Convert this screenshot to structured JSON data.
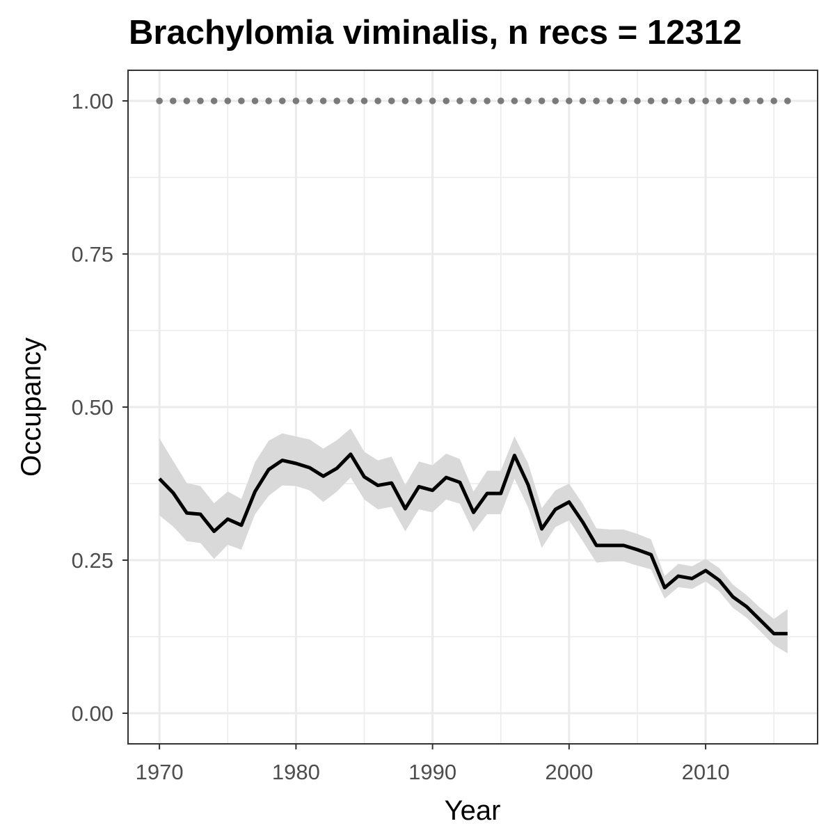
{
  "chart_data": {
    "type": "line",
    "title": "Brachylomia viminalis, n recs = 12312",
    "xlabel": "Year",
    "ylabel": "Occupancy",
    "xlim": [
      1967.7,
      2018.2
    ],
    "ylim": [
      -0.05,
      1.05
    ],
    "x_ticks": [
      1970,
      1980,
      1990,
      2000,
      2010
    ],
    "x_tick_labels": [
      "1970",
      "1980",
      "1990",
      "2000",
      "2010"
    ],
    "y_ticks": [
      0,
      0.25,
      0.5,
      0.75,
      1.0
    ],
    "y_tick_labels": [
      "0.00",
      "0.25",
      "0.50",
      "0.75",
      "1.00"
    ],
    "grid": true,
    "legend": "none",
    "colors": {
      "line": "#000000",
      "ribbon": "#d9d9d9",
      "reference_dots": "#7a7a7a",
      "grid": "#ebebeb",
      "panel_border": "#333333"
    },
    "series": [
      {
        "x": [
          1970,
          1971,
          1972,
          1973,
          1974,
          1975,
          1976,
          1977,
          1978,
          1979,
          1980,
          1981,
          1982,
          1983,
          1984,
          1985,
          1986,
          1987,
          1988,
          1989,
          1990,
          1991,
          1992,
          1993,
          1994,
          1995,
          1996,
          1997,
          1998,
          1999,
          2000,
          2001,
          2002,
          2003,
          2004,
          2005,
          2006,
          2007,
          2008,
          2009,
          2010,
          2011,
          2012,
          2013,
          2014,
          2015,
          2016
        ],
        "y": [
          0.383,
          0.36,
          0.327,
          0.325,
          0.297,
          0.317,
          0.307,
          0.362,
          0.398,
          0.413,
          0.408,
          0.401,
          0.387,
          0.4,
          0.423,
          0.386,
          0.372,
          0.376,
          0.334,
          0.37,
          0.364,
          0.385,
          0.377,
          0.328,
          0.359,
          0.359,
          0.421,
          0.373,
          0.301,
          0.333,
          0.345,
          0.312,
          0.274,
          0.274,
          0.274,
          0.267,
          0.259,
          0.205,
          0.224,
          0.22,
          0.233,
          0.217,
          0.19,
          0.174,
          0.152,
          0.13,
          0.13
        ],
        "lower": [
          0.323,
          0.305,
          0.281,
          0.278,
          0.252,
          0.275,
          0.267,
          0.325,
          0.355,
          0.372,
          0.371,
          0.364,
          0.345,
          0.362,
          0.385,
          0.349,
          0.333,
          0.337,
          0.297,
          0.333,
          0.328,
          0.349,
          0.342,
          0.296,
          0.325,
          0.325,
          0.383,
          0.336,
          0.27,
          0.304,
          0.315,
          0.281,
          0.246,
          0.248,
          0.248,
          0.241,
          0.235,
          0.187,
          0.206,
          0.203,
          0.215,
          0.199,
          0.172,
          0.156,
          0.134,
          0.111,
          0.098
        ],
        "upper": [
          0.449,
          0.412,
          0.376,
          0.371,
          0.343,
          0.362,
          0.35,
          0.41,
          0.445,
          0.457,
          0.452,
          0.447,
          0.432,
          0.446,
          0.465,
          0.427,
          0.413,
          0.419,
          0.373,
          0.411,
          0.405,
          0.424,
          0.415,
          0.362,
          0.396,
          0.396,
          0.452,
          0.408,
          0.335,
          0.364,
          0.375,
          0.342,
          0.302,
          0.3,
          0.3,
          0.293,
          0.284,
          0.224,
          0.244,
          0.24,
          0.252,
          0.237,
          0.21,
          0.193,
          0.172,
          0.154,
          0.17
        ]
      },
      {
        "x": [
          1970,
          1971,
          1972,
          1973,
          1974,
          1975,
          1976,
          1977,
          1978,
          1979,
          1980,
          1981,
          1982,
          1983,
          1984,
          1985,
          1986,
          1987,
          1988,
          1989,
          1990,
          1991,
          1992,
          1993,
          1994,
          1995,
          1996,
          1997,
          1998,
          1999,
          2000,
          2001,
          2002,
          2003,
          2004,
          2005,
          2006,
          2007,
          2008,
          2009,
          2010,
          2011,
          2012,
          2013,
          2014,
          2015,
          2016
        ],
        "y": [
          1,
          1,
          1,
          1,
          1,
          1,
          1,
          1,
          1,
          1,
          1,
          1,
          1,
          1,
          1,
          1,
          1,
          1,
          1,
          1,
          1,
          1,
          1,
          1,
          1,
          1,
          1,
          1,
          1,
          1,
          1,
          1,
          1,
          1,
          1,
          1,
          1,
          1,
          1,
          1,
          1,
          1,
          1,
          1,
          1,
          1,
          1
        ]
      }
    ]
  }
}
